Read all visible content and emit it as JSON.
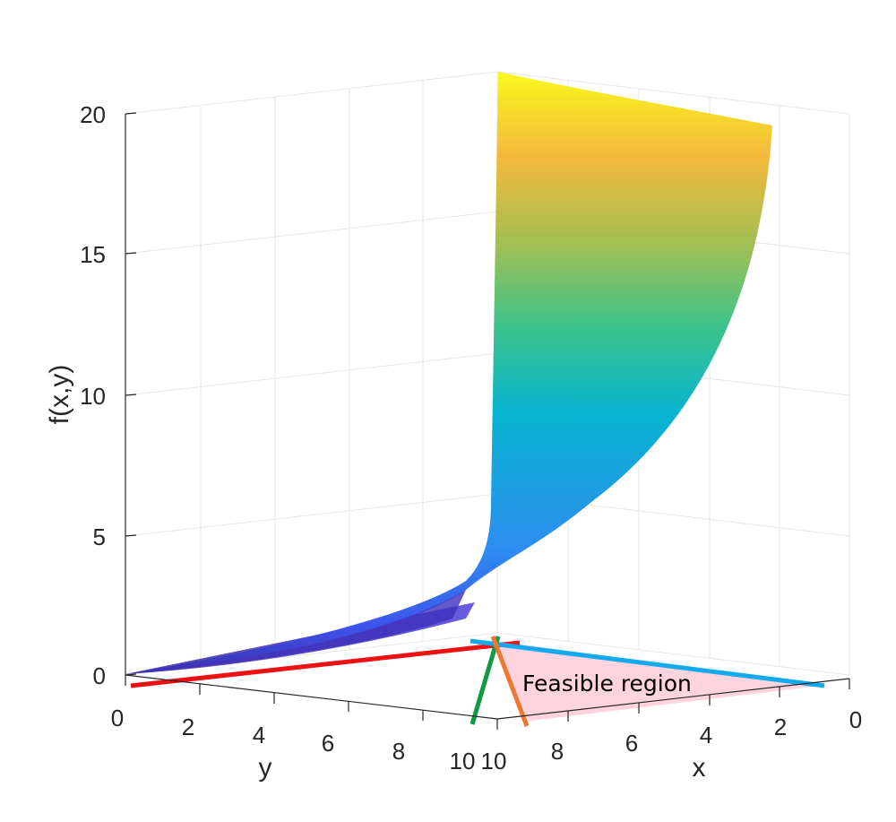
{
  "chart_data": {
    "type": "surface",
    "zlabel": "f(x,y)",
    "xlabel": "x",
    "ylabel": "y",
    "xlim": [
      0,
      10
    ],
    "ylim": [
      0,
      10
    ],
    "zlim": [
      0,
      20
    ],
    "z_ticks": [
      "0",
      "5",
      "10",
      "15",
      "20"
    ],
    "x_ticks": [
      "10",
      "8",
      "6",
      "4",
      "2",
      "0"
    ],
    "y_ticks": [
      "0",
      "2",
      "4",
      "6",
      "8",
      "10"
    ],
    "colormap": "parula",
    "grid": true,
    "surface_corners": [
      {
        "x": 0,
        "y": 0,
        "z": 0
      },
      {
        "x": 10,
        "y": 10,
        "z": 2
      },
      {
        "x": 10,
        "y": 10,
        "z": 5
      },
      {
        "x": 10,
        "y": 10,
        "z": 21
      },
      {
        "x": 1,
        "y": 10,
        "z": 19.5
      }
    ],
    "constraint_lines": [
      {
        "name": "red",
        "color": "#ee1111"
      },
      {
        "name": "blue",
        "color": "#11aaee"
      },
      {
        "name": "green",
        "color": "#119944"
      },
      {
        "name": "orange",
        "color": "#ee7733"
      }
    ],
    "annotation": "Feasible region",
    "feasible_region_color": "#ffd2dc"
  }
}
